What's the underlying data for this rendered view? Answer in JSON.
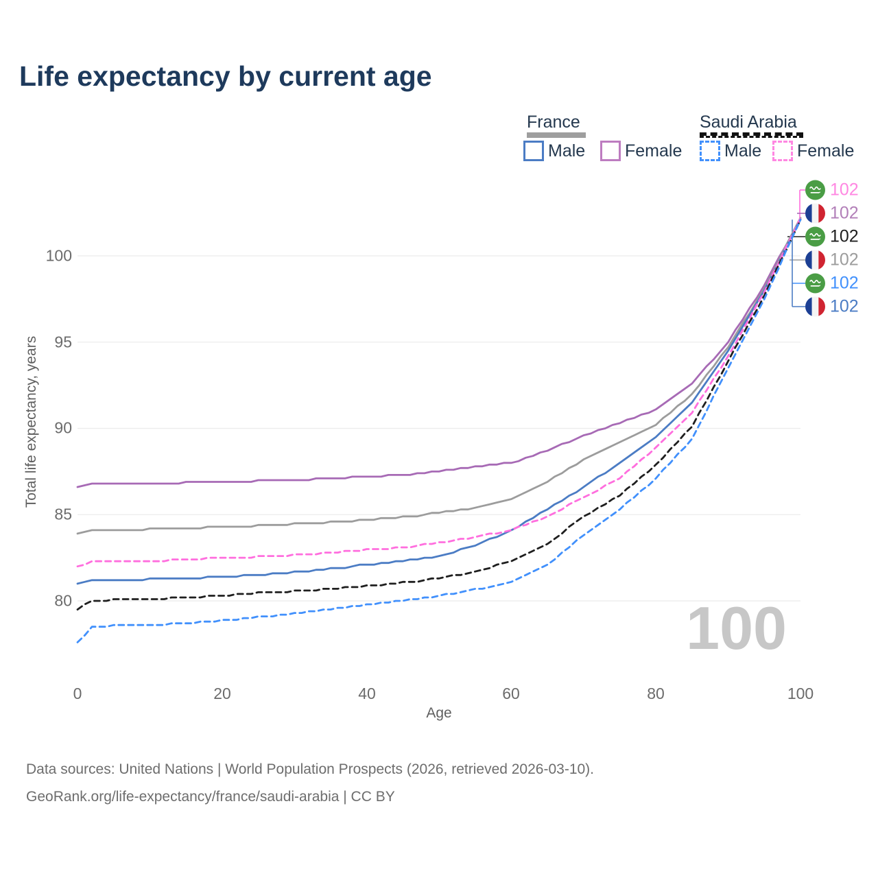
{
  "title": "Life expectancy by current age",
  "legend": {
    "groups": [
      {
        "label": "France",
        "underline": {
          "color": "#9e9e9e",
          "style": "solid"
        },
        "items": [
          {
            "label": "Male",
            "color": "#4b7cc4",
            "style": "solid"
          },
          {
            "label": "Female",
            "color": "#bd7cc0",
            "style": "solid"
          }
        ]
      },
      {
        "label": "Saudi Arabia",
        "underline": {
          "color": "#111111",
          "style": "dashed"
        },
        "items": [
          {
            "label": "Male",
            "color": "#4190fc",
            "style": "dashed"
          },
          {
            "label": "Female",
            "color": "#ff87e2",
            "style": "dashed"
          }
        ]
      }
    ]
  },
  "chart_data": {
    "type": "line",
    "title": "Life expectancy by current age",
    "xlabel": "Age",
    "ylabel": "Total life expectancy, years",
    "xlim": [
      0,
      100
    ],
    "ylim": [
      77.5,
      102.5
    ],
    "grid": "horizontal",
    "xticks": [
      "0",
      "20",
      "40",
      "60",
      "80",
      "100"
    ],
    "yticks": [
      "80",
      "85",
      "90",
      "95",
      "100"
    ],
    "ytick_values": [
      80,
      85,
      90,
      95,
      100
    ],
    "xtick_values": [
      0,
      20,
      40,
      60,
      80,
      100
    ],
    "x": [
      0,
      2,
      5,
      10,
      15,
      20,
      25,
      30,
      35,
      40,
      45,
      50,
      55,
      60,
      65,
      70,
      75,
      80,
      85,
      90,
      95,
      100
    ],
    "series": [
      {
        "name": "France Female",
        "country": "France",
        "sex": "Female",
        "color": "#a76ab5",
        "style": "solid",
        "values": [
          86.6,
          86.8,
          86.8,
          86.8,
          86.85,
          86.9,
          86.95,
          87.0,
          87.1,
          87.2,
          87.3,
          87.5,
          87.75,
          88.0,
          88.7,
          89.6,
          90.3,
          91.1,
          92.6,
          95.0,
          98.3,
          102.2
        ]
      },
      {
        "name": "France Both sexes",
        "country": "France",
        "sex": "Both",
        "color": "#9c9c9c",
        "style": "solid",
        "values": [
          83.9,
          84.1,
          84.1,
          84.15,
          84.2,
          84.3,
          84.35,
          84.45,
          84.55,
          84.7,
          84.85,
          85.1,
          85.4,
          85.9,
          86.9,
          88.2,
          89.2,
          90.2,
          92.0,
          94.7,
          98.1,
          102.2
        ]
      },
      {
        "name": "France Male",
        "country": "France",
        "sex": "Male",
        "color": "#4b7cc4",
        "style": "solid",
        "values": [
          81.0,
          81.2,
          81.2,
          81.25,
          81.3,
          81.4,
          81.5,
          81.65,
          81.85,
          82.1,
          82.3,
          82.6,
          83.2,
          84.1,
          85.3,
          86.6,
          88.0,
          89.5,
          91.5,
          94.5,
          98.0,
          102.1
        ]
      },
      {
        "name": "Saudi Arabia Female",
        "country": "Saudi Arabia",
        "sex": "Female",
        "color": "#ff6ede",
        "style": "dashed",
        "values": [
          82.0,
          82.25,
          82.3,
          82.3,
          82.4,
          82.5,
          82.55,
          82.65,
          82.8,
          82.95,
          83.1,
          83.35,
          83.7,
          84.1,
          84.9,
          86.0,
          87.1,
          88.9,
          90.9,
          94.2,
          97.9,
          102.2
        ]
      },
      {
        "name": "Saudi Arabia Both sexes",
        "country": "Saudi Arabia",
        "sex": "Both",
        "color": "#1f1f1f",
        "style": "dashed",
        "values": [
          79.5,
          80.0,
          80.05,
          80.1,
          80.2,
          80.3,
          80.45,
          80.55,
          80.7,
          80.85,
          81.05,
          81.3,
          81.7,
          82.3,
          83.3,
          84.9,
          86.1,
          87.9,
          90.1,
          93.9,
          97.7,
          102.1
        ]
      },
      {
        "name": "Saudi Arabia Male",
        "country": "Saudi Arabia",
        "sex": "Male",
        "color": "#4190fc",
        "style": "dashed",
        "values": [
          77.6,
          78.45,
          78.55,
          78.6,
          78.7,
          78.85,
          79.05,
          79.25,
          79.5,
          79.8,
          80.0,
          80.3,
          80.65,
          81.1,
          82.1,
          83.8,
          85.3,
          87.1,
          89.4,
          93.5,
          97.5,
          102.1
        ]
      }
    ],
    "end_labels": [
      {
        "series": "Saudi Arabia Female",
        "flag": "saudi-arabia",
        "value": "102",
        "color": "#ff87e2"
      },
      {
        "series": "France Female",
        "flag": "france",
        "value": "102",
        "color": "#b27fb8"
      },
      {
        "series": "Saudi Arabia Both sexes",
        "flag": "saudi-arabia",
        "value": "102",
        "color": "#1f1f1f"
      },
      {
        "series": "France Both sexes",
        "flag": "france",
        "value": "102",
        "color": "#9c9c9c"
      },
      {
        "series": "Saudi Arabia Male",
        "flag": "saudi-arabia",
        "value": "102",
        "color": "#4190fc"
      },
      {
        "series": "France Male",
        "flag": "france",
        "value": "102",
        "color": "#4b7cc4"
      }
    ],
    "hover_age_indicator": "100",
    "legend_position": "top-right"
  },
  "footer": {
    "line1": "Data sources: United Nations | World Population Prospects (2026, retrieved 2026-03-10).",
    "line2": "GeoRank.org/life-expectancy/france/saudi-arabia | CC BY"
  }
}
